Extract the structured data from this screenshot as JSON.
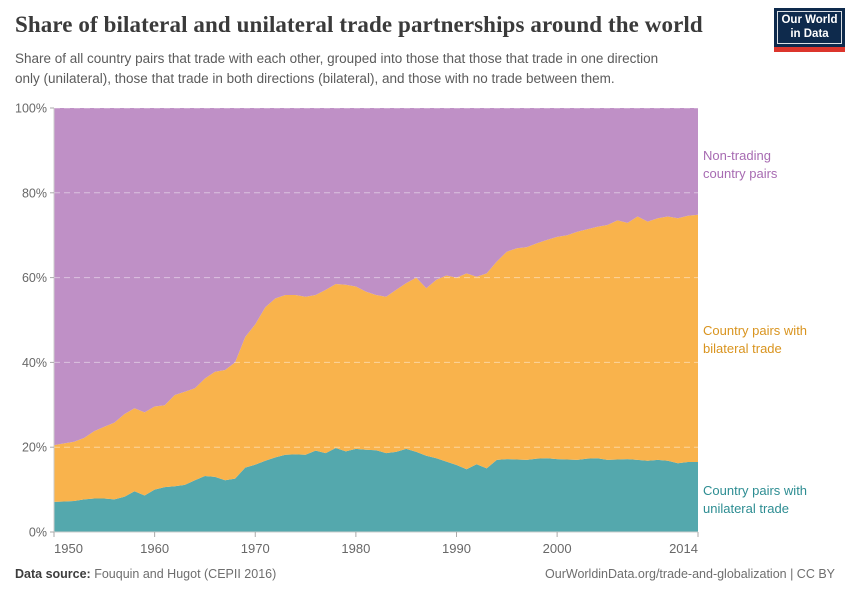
{
  "header": {
    "title": "Share of bilateral and unilateral trade partnerships around the world",
    "subtitle_line1": "Share of all country pairs that trade with each other, grouped into those that those that trade in one direction",
    "subtitle_line2": "only (unilateral), those that trade in both directions (bilateral), and those with no trade between them.",
    "logo": {
      "line1": "Our World",
      "line2": "in Data",
      "bg_color": "#0e2a4c",
      "stripe_color": "#dc352c"
    }
  },
  "footer": {
    "source_label": "Data source:",
    "source_text": " Fouquin and Hugot (CEPII 2016)",
    "link_text": "OurWorldinData.org/trade-and-globalization | CC BY"
  },
  "colors": {
    "axis_text": "#686868",
    "axis_line": "#cccccc",
    "tick": "#aaaaaa",
    "gridline": "rgba(255,255,255,0.45)"
  },
  "chart_data": {
    "type": "area",
    "stacked": true,
    "title": "Share of bilateral and unilateral trade partnerships around the world",
    "xlabel": "",
    "ylabel": "",
    "ylim": [
      0,
      100
    ],
    "xlim": [
      1950,
      2014
    ],
    "grid": "dashed horizontal",
    "legend_position": "right-of-plot inline labels",
    "yticks": [
      0,
      20,
      40,
      60,
      80,
      100
    ],
    "ytick_suffix": "%",
    "xticks": [
      1950,
      1960,
      1970,
      1980,
      1990,
      2000,
      2014
    ],
    "years": [
      1950,
      1951,
      1952,
      1953,
      1954,
      1955,
      1956,
      1957,
      1958,
      1959,
      1960,
      1961,
      1962,
      1963,
      1964,
      1965,
      1966,
      1967,
      1968,
      1969,
      1970,
      1971,
      1972,
      1973,
      1974,
      1975,
      1976,
      1977,
      1978,
      1979,
      1980,
      1981,
      1982,
      1983,
      1984,
      1985,
      1986,
      1987,
      1988,
      1989,
      1990,
      1991,
      1992,
      1993,
      1994,
      1995,
      1996,
      1997,
      1998,
      1999,
      2000,
      2001,
      2002,
      2003,
      2004,
      2005,
      2006,
      2007,
      2008,
      2009,
      2010,
      2011,
      2012,
      2013,
      2014
    ],
    "series": [
      {
        "name": "Country pairs with unilateral trade",
        "label_line1": "Country pairs with",
        "label_line2": "unilateral trade",
        "color": "#54a8ad",
        "label_color": "#2d8d92",
        "values": [
          7.1,
          7.2,
          7.3,
          7.7,
          7.9,
          7.9,
          7.7,
          8.3,
          9.6,
          8.6,
          10.0,
          10.6,
          10.8,
          11.1,
          12.2,
          13.2,
          13.0,
          12.2,
          12.6,
          15.2,
          15.9,
          16.8,
          17.6,
          18.2,
          18.3,
          18.2,
          19.2,
          18.6,
          19.8,
          19.0,
          19.6,
          19.4,
          19.3,
          18.6,
          18.9,
          19.6,
          18.9,
          18.0,
          17.4,
          16.6,
          15.8,
          14.8,
          16.0,
          15.0,
          17.0,
          17.2,
          17.1,
          17.0,
          17.3,
          17.4,
          17.2,
          17.1,
          17.0,
          17.3,
          17.4,
          17.0,
          17.1,
          17.2,
          17.0,
          16.8,
          17.0,
          16.8,
          16.2,
          16.5,
          16.5
        ]
      },
      {
        "name": "Country pairs with bilateral trade",
        "label_line1": "Country pairs with",
        "label_line2": "bilateral trade",
        "color": "#f9b34c",
        "label_color": "#d9941f",
        "values": [
          13.4,
          13.7,
          14.0,
          14.5,
          15.9,
          16.9,
          18.1,
          19.5,
          19.6,
          19.6,
          19.6,
          19.3,
          21.5,
          22.0,
          21.7,
          23.0,
          24.8,
          26.0,
          27.4,
          30.8,
          33.1,
          36.2,
          37.5,
          37.7,
          37.6,
          37.3,
          36.7,
          38.5,
          38.7,
          39.3,
          38.3,
          37.3,
          36.6,
          36.9,
          38.2,
          39.1,
          41.1,
          39.5,
          42.1,
          43.9,
          44.2,
          46.2,
          44.2,
          46.0,
          46.8,
          48.9,
          49.8,
          50.2,
          50.8,
          51.5,
          52.4,
          52.9,
          53.8,
          54.1,
          54.6,
          55.4,
          56.4,
          55.7,
          57.4,
          56.4,
          57.0,
          57.6,
          57.8,
          58.1,
          58.3
        ]
      },
      {
        "name": "Non-trading country pairs",
        "label_line1": "Non-trading",
        "label_line2": "country pairs",
        "color": "#bf90c6",
        "label_color": "#a76bb2",
        "values": [
          79.5,
          79.1,
          78.7,
          77.8,
          76.2,
          75.2,
          74.2,
          72.2,
          70.8,
          71.8,
          70.4,
          70.1,
          67.7,
          66.9,
          66.1,
          63.8,
          62.2,
          61.8,
          60.0,
          54.0,
          51.0,
          47.0,
          44.9,
          44.1,
          44.1,
          44.5,
          44.1,
          42.9,
          41.5,
          41.7,
          42.1,
          43.3,
          44.1,
          44.5,
          42.9,
          41.3,
          40.0,
          42.5,
          40.5,
          39.5,
          40.0,
          39.0,
          39.8,
          39.0,
          36.2,
          33.9,
          33.1,
          32.8,
          31.9,
          31.1,
          30.4,
          30.0,
          29.2,
          28.6,
          28.0,
          27.6,
          26.5,
          27.1,
          25.6,
          26.8,
          26.0,
          25.6,
          26.0,
          25.4,
          25.2
        ]
      }
    ]
  }
}
